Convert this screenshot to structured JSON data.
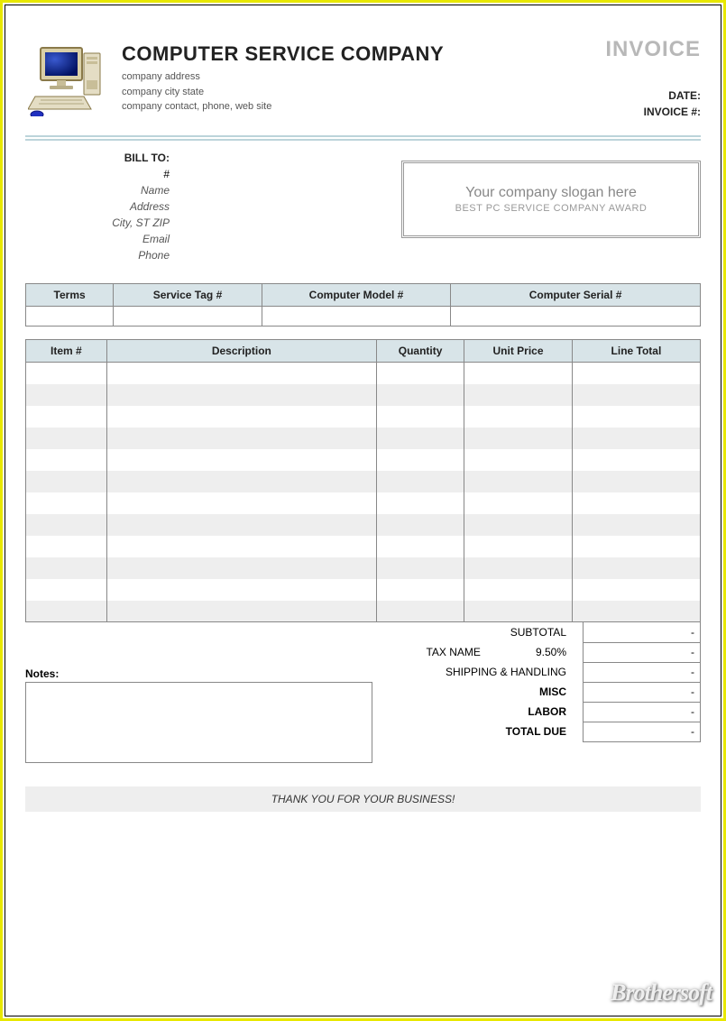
{
  "colors": {
    "frame_outer": "#e8e800",
    "frame_inner": "#000000",
    "header_band": "#d8e4e8",
    "row_alt": "#eeeeee",
    "border": "#888888",
    "muted_text": "#b8b8b8",
    "subtext": "#888888"
  },
  "header": {
    "company_name": "COMPUTER SERVICE COMPANY",
    "address_line": "company address",
    "city_line": "company city state",
    "contact_line": "company contact, phone, web site",
    "invoice_title": "INVOICE",
    "date_label": "DATE:",
    "invoice_no_label": "INVOICE #:"
  },
  "bill_to": {
    "title": "BILL TO:",
    "number": "#",
    "name": "Name",
    "address": "Address",
    "city": "City, ST ZIP",
    "email": "Email",
    "phone": "Phone"
  },
  "slogan": {
    "main": "Your company slogan here",
    "sub": "BEST PC SERVICE COMPANY AWARD"
  },
  "info_table": {
    "columns": [
      "Terms",
      "Service Tag #",
      "Computer Model #",
      "Computer Serial #"
    ],
    "widths_pct": [
      13,
      22,
      28,
      37
    ]
  },
  "line_table": {
    "columns": [
      "Item #",
      "Description",
      "Quantity",
      "Unit Price",
      "Line Total"
    ],
    "widths_pct": [
      12,
      40,
      13,
      16,
      19
    ],
    "row_count": 12
  },
  "summary": {
    "subtotal_label": "SUBTOTAL",
    "tax_label": "TAX NAME",
    "tax_pct": "9.50%",
    "shipping_label": "SHIPPING & HANDLING",
    "misc_label": "MISC",
    "labor_label": "LABOR",
    "total_label": "TOTAL DUE",
    "dash": "-"
  },
  "notes_label": "Notes:",
  "thank_you": "THANK YOU FOR YOUR BUSINESS!",
  "watermark": "Brothersoft"
}
